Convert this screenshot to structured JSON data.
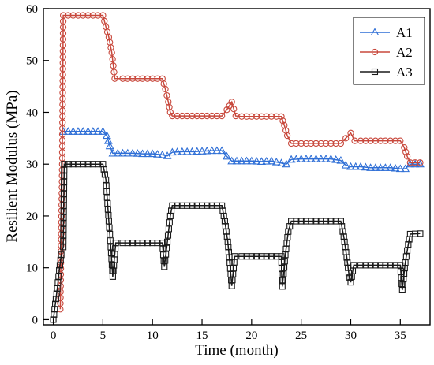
{
  "chart_data": {
    "type": "line",
    "xlabel": "Time (month)",
    "ylabel": "Resilient Modulus (MPa)",
    "xlim": [
      -1,
      38
    ],
    "ylim": [
      -1,
      60
    ],
    "x_ticks": [
      0,
      5,
      10,
      15,
      20,
      25,
      30,
      35
    ],
    "y_ticks": [
      0,
      10,
      20,
      30,
      40,
      50,
      60
    ],
    "grid": false,
    "legend_position": "top-right",
    "series": [
      {
        "name": "A1",
        "color": "#2f6fd6",
        "marker": "triangle",
        "points": [
          [
            1,
            36.3
          ],
          [
            2,
            36.3
          ],
          [
            3,
            36.3
          ],
          [
            4,
            36.3
          ],
          [
            5,
            36.3
          ],
          [
            5.4,
            35.5
          ],
          [
            5.7,
            33.5
          ],
          [
            6,
            32.1
          ],
          [
            7,
            32.1
          ],
          [
            8,
            32.1
          ],
          [
            9,
            32.0
          ],
          [
            10,
            32.0
          ],
          [
            11,
            31.8
          ],
          [
            11.5,
            31.6
          ],
          [
            12,
            32.3
          ],
          [
            13,
            32.4
          ],
          [
            14,
            32.4
          ],
          [
            15,
            32.5
          ],
          [
            16,
            32.6
          ],
          [
            17,
            32.6
          ],
          [
            17.5,
            31.5
          ],
          [
            18,
            30.6
          ],
          [
            19,
            30.6
          ],
          [
            20,
            30.6
          ],
          [
            21,
            30.5
          ],
          [
            22,
            30.6
          ],
          [
            23,
            30.2
          ],
          [
            23.5,
            30.0
          ],
          [
            24,
            30.9
          ],
          [
            25,
            31.0
          ],
          [
            26,
            31.0
          ],
          [
            27,
            31.0
          ],
          [
            28,
            31.0
          ],
          [
            29,
            30.7
          ],
          [
            29.5,
            29.8
          ],
          [
            30,
            29.5
          ],
          [
            31,
            29.5
          ],
          [
            32,
            29.3
          ],
          [
            33,
            29.3
          ],
          [
            34,
            29.3
          ],
          [
            35,
            29.1
          ],
          [
            35.5,
            29.1
          ],
          [
            36,
            30.0
          ],
          [
            37,
            30.0
          ]
        ]
      },
      {
        "name": "A2",
        "color": "#c8483c",
        "marker": "circle",
        "points": [
          [
            0.7,
            2
          ],
          [
            0.9,
            30
          ],
          [
            1,
            58.7
          ],
          [
            2,
            58.7
          ],
          [
            3,
            58.7
          ],
          [
            4,
            58.7
          ],
          [
            5,
            58.7
          ],
          [
            5.3,
            56.5
          ],
          [
            5.6,
            54.5
          ],
          [
            5.9,
            51.5
          ],
          [
            6.2,
            46.5
          ],
          [
            7,
            46.5
          ],
          [
            8,
            46.5
          ],
          [
            9,
            46.5
          ],
          [
            10,
            46.5
          ],
          [
            11,
            46.5
          ],
          [
            11.3,
            44.5
          ],
          [
            11.6,
            42
          ],
          [
            11.8,
            40
          ],
          [
            12,
            39.3
          ],
          [
            13,
            39.3
          ],
          [
            14,
            39.3
          ],
          [
            15,
            39.3
          ],
          [
            16,
            39.3
          ],
          [
            17,
            39.3
          ],
          [
            17.5,
            40.5
          ],
          [
            18,
            42.0
          ],
          [
            18.4,
            39.3
          ],
          [
            19,
            39.2
          ],
          [
            20,
            39.2
          ],
          [
            21,
            39.2
          ],
          [
            22,
            39.2
          ],
          [
            23,
            39.2
          ],
          [
            23.3,
            37.5
          ],
          [
            23.6,
            35.5
          ],
          [
            24,
            34.0
          ],
          [
            25,
            34.0
          ],
          [
            26,
            34.0
          ],
          [
            27,
            34.0
          ],
          [
            28,
            34.0
          ],
          [
            29,
            34.0
          ],
          [
            29.5,
            35.0
          ],
          [
            30,
            36.0
          ],
          [
            30.4,
            34.5
          ],
          [
            31,
            34.5
          ],
          [
            32,
            34.5
          ],
          [
            33,
            34.5
          ],
          [
            34,
            34.5
          ],
          [
            35,
            34.5
          ],
          [
            35.4,
            33.2
          ],
          [
            35.7,
            31.5
          ],
          [
            36,
            30.3
          ],
          [
            37,
            30.3
          ]
        ]
      },
      {
        "name": "A3",
        "color": "#1a1a1a",
        "marker": "square",
        "points": [
          [
            0,
            0
          ],
          [
            0.2,
            3
          ],
          [
            0.4,
            6
          ],
          [
            0.6,
            9.5
          ],
          [
            0.8,
            12.5
          ],
          [
            1,
            14
          ],
          [
            1.1,
            30.0
          ],
          [
            2,
            30.0
          ],
          [
            3,
            30.0
          ],
          [
            4,
            30.0
          ],
          [
            5,
            30.0
          ],
          [
            5.3,
            27
          ],
          [
            5.6,
            19
          ],
          [
            5.8,
            14
          ],
          [
            6,
            8.3
          ],
          [
            6.3,
            14.8
          ],
          [
            7,
            14.8
          ],
          [
            8,
            14.8
          ],
          [
            9,
            14.8
          ],
          [
            10,
            14.8
          ],
          [
            11,
            14.8
          ],
          [
            11.2,
            10.2
          ],
          [
            11.5,
            15
          ],
          [
            11.8,
            20
          ],
          [
            12,
            22.0
          ],
          [
            13,
            22.0
          ],
          [
            14,
            22.0
          ],
          [
            15,
            22.0
          ],
          [
            16,
            22.0
          ],
          [
            17,
            22.0
          ],
          [
            17.3,
            19
          ],
          [
            17.6,
            15
          ],
          [
            17.8,
            11
          ],
          [
            18,
            6.5
          ],
          [
            18.3,
            12.2
          ],
          [
            19,
            12.2
          ],
          [
            20,
            12.2
          ],
          [
            21,
            12.2
          ],
          [
            22,
            12.2
          ],
          [
            23,
            12.2
          ],
          [
            23.1,
            6.4
          ],
          [
            23.4,
            12.5
          ],
          [
            23.7,
            17
          ],
          [
            24,
            19.0
          ],
          [
            25,
            19.0
          ],
          [
            26,
            19.0
          ],
          [
            27,
            19.0
          ],
          [
            28,
            19.0
          ],
          [
            29,
            19.0
          ],
          [
            29.3,
            16
          ],
          [
            29.6,
            12
          ],
          [
            29.8,
            9
          ],
          [
            30,
            7.2
          ],
          [
            30.3,
            10.5
          ],
          [
            31,
            10.5
          ],
          [
            32,
            10.5
          ],
          [
            33,
            10.5
          ],
          [
            34,
            10.5
          ],
          [
            35,
            10.5
          ],
          [
            35.2,
            5.7
          ],
          [
            35.5,
            11
          ],
          [
            35.8,
            14.5
          ],
          [
            36,
            16.5
          ],
          [
            37,
            16.6
          ]
        ]
      }
    ]
  }
}
